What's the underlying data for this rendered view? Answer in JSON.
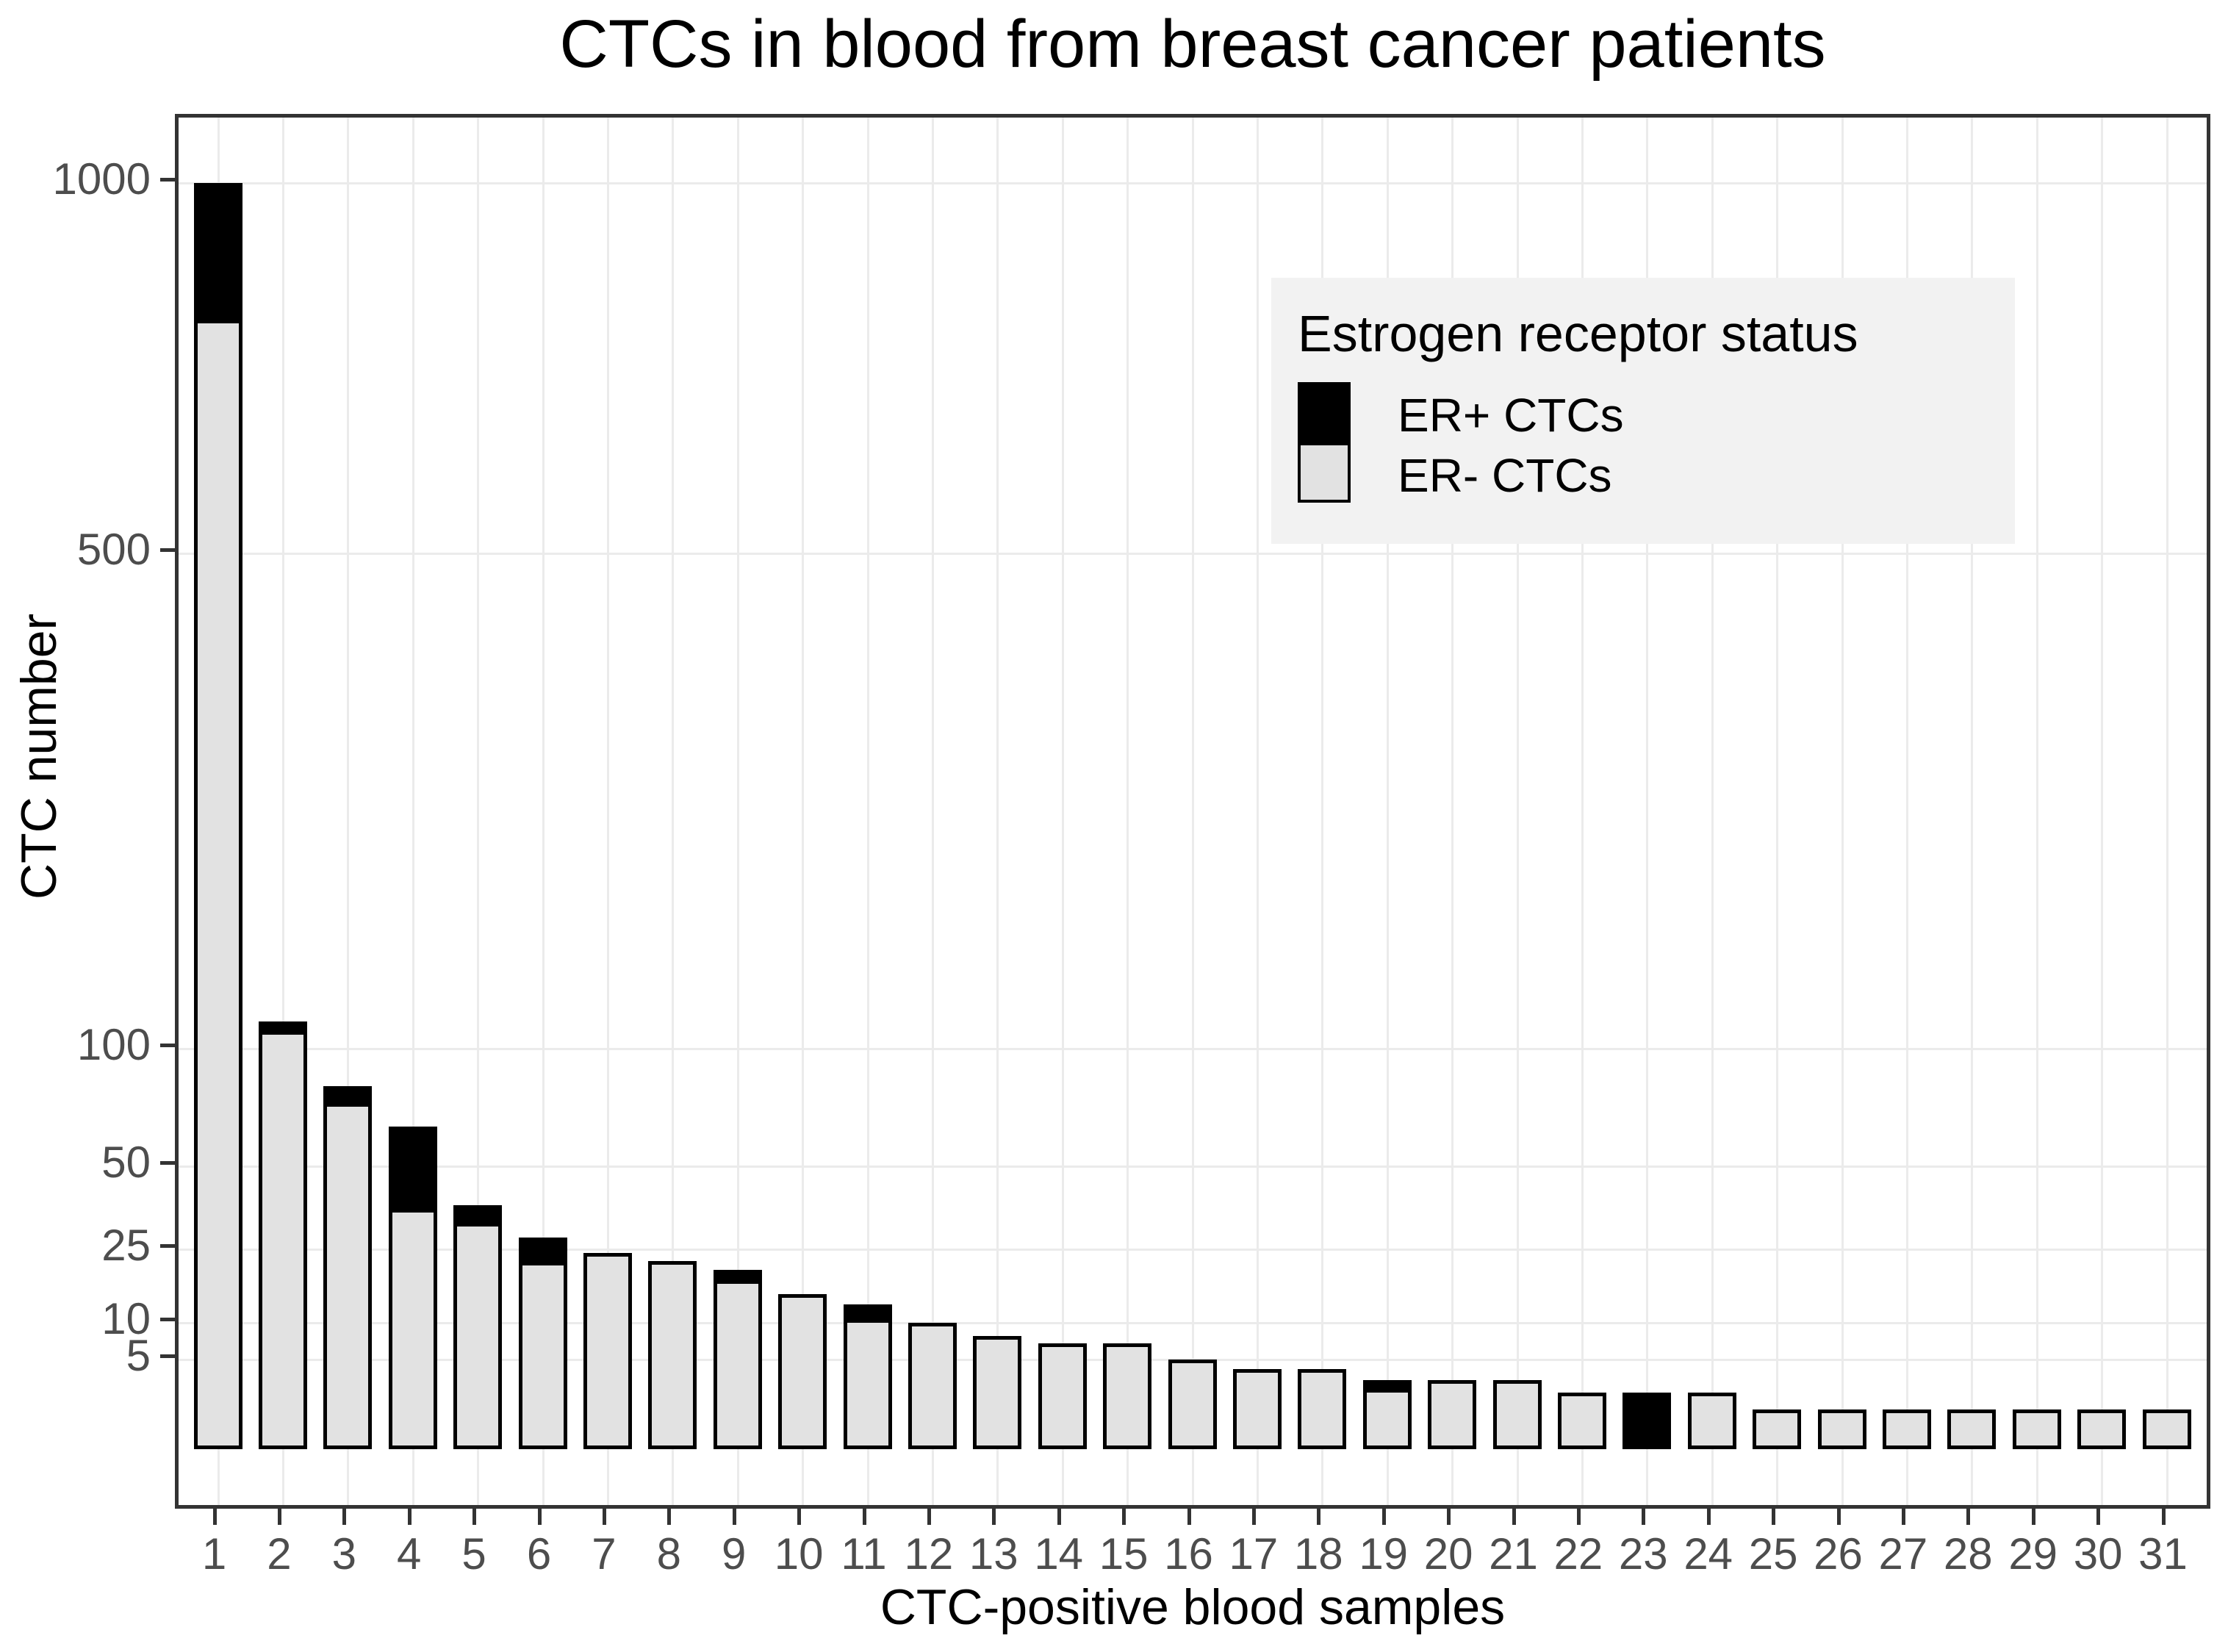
{
  "title": "CTCs in blood from breast cancer patients",
  "colors": {
    "er_positive": "#000000",
    "er_negative": "#e2e2e2",
    "bar_outline": "#000000",
    "gridline": "#ebebeb",
    "panel_border": "#333333",
    "tick_label": "#4d4d4d",
    "legend_background": "#f2f2f2"
  },
  "legend": {
    "title": "Estrogen receptor status",
    "position": "inside top-right",
    "items": [
      {
        "label": "ER+ CTCs",
        "color": "#000000"
      },
      {
        "label": "ER- CTCs",
        "color": "#e2e2e2"
      }
    ]
  },
  "chart_data": {
    "type": "bar",
    "stacked": true,
    "y_scale": "sqrt",
    "title": "CTCs in blood from breast cancer patients",
    "xlabel": "CTC-positive blood samples",
    "ylabel": "CTC number",
    "grid": true,
    "y_ticks": [
      5,
      10,
      25,
      50,
      100,
      500,
      1000
    ],
    "ylim": [
      0,
      1150
    ],
    "categories": [
      "1",
      "2",
      "3",
      "4",
      "5",
      "6",
      "7",
      "8",
      "9",
      "10",
      "11",
      "12",
      "13",
      "14",
      "15",
      "16",
      "17",
      "18",
      "19",
      "20",
      "21",
      "22",
      "23",
      "24",
      "25",
      "26",
      "27",
      "28",
      "29",
      "30",
      "31"
    ],
    "series": [
      {
        "name": "ER+ CTCs",
        "color": "#000000",
        "values": [
          210,
          7,
          9,
          30,
          6,
          7,
          0,
          0,
          3,
          0,
          3,
          0,
          0,
          0,
          0,
          0,
          0,
          0,
          1,
          0,
          0,
          0,
          2,
          0,
          0,
          0,
          0,
          0,
          0,
          0,
          0
        ]
      },
      {
        "name": "ER- CTCs",
        "color": "#e2e2e2",
        "values": [
          790,
          107,
          73,
          35,
          31,
          21,
          24,
          22,
          17,
          15,
          10,
          10,
          8,
          7,
          7,
          5,
          4,
          4,
          2,
          3,
          3,
          2,
          0,
          2,
          1,
          1,
          1,
          1,
          1,
          1,
          1
        ]
      }
    ],
    "totals": [
      1000,
      114,
      82,
      65,
      37,
      28,
      24,
      22,
      20,
      15,
      13,
      10,
      8,
      7,
      7,
      5,
      4,
      4,
      3,
      3,
      3,
      2,
      2,
      2,
      1,
      1,
      1,
      1,
      1,
      1,
      1
    ]
  }
}
